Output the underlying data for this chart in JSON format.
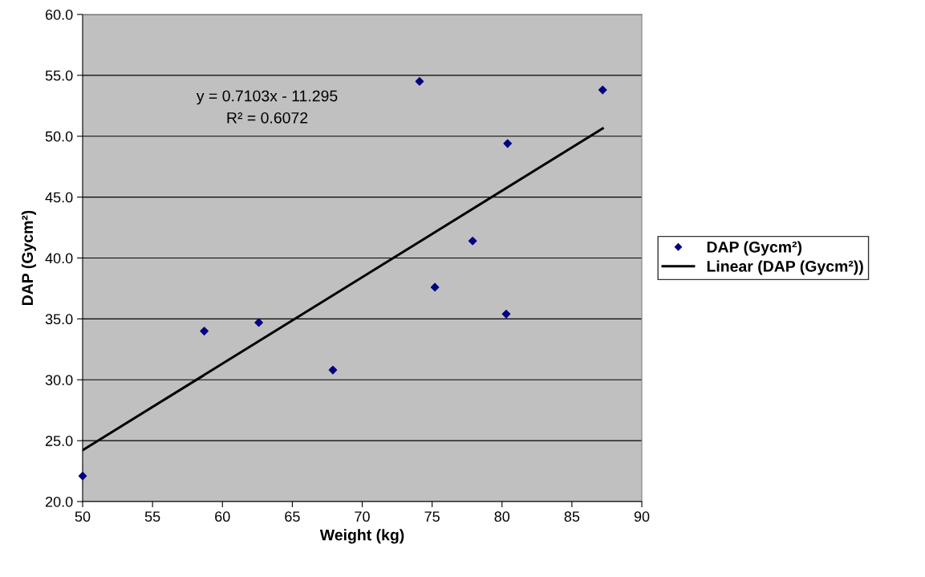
{
  "chart_data": {
    "type": "scatter",
    "xlabel": "Weight (kg)",
    "ylabel": "DAP (Gycm²)",
    "series": [
      {
        "name": "DAP (Gycm²)",
        "marker": "diamond",
        "color": "#000080",
        "x": [
          50.0,
          58.7,
          62.6,
          67.9,
          74.1,
          75.2,
          77.9,
          80.4,
          80.3,
          87.2
        ],
        "values": [
          22.1,
          34.0,
          34.7,
          30.8,
          54.5,
          37.6,
          41.4,
          49.4,
          35.4,
          53.8
        ]
      },
      {
        "name": "Linear (DAP (Gycm²))",
        "type": "line",
        "marker": "none",
        "line_style": "solid",
        "color": "#000000",
        "x": [
          50.0,
          87.2
        ],
        "values": [
          24.22,
          50.64
        ]
      }
    ],
    "annotations": [
      "y = 0.7103x - 11.295",
      "R² = 0.6072"
    ],
    "xlim": [
      50,
      90
    ],
    "xticks": [
      50,
      55,
      60,
      65,
      70,
      75,
      80,
      85,
      90
    ],
    "ylim": [
      20,
      60
    ],
    "yticks": [
      {
        "value": 20,
        "label": "20.0"
      },
      {
        "value": 25,
        "label": "25.0"
      },
      {
        "value": 30,
        "label": "30.0"
      },
      {
        "value": 35,
        "label": "35.0"
      },
      {
        "value": 40,
        "label": "40.0"
      },
      {
        "value": 45,
        "label": "45.0"
      },
      {
        "value": 50,
        "label": "50.0"
      },
      {
        "value": 55,
        "label": "55.0"
      },
      {
        "value": 60,
        "label": "60.0"
      }
    ],
    "grid": "y",
    "legend": "right"
  }
}
